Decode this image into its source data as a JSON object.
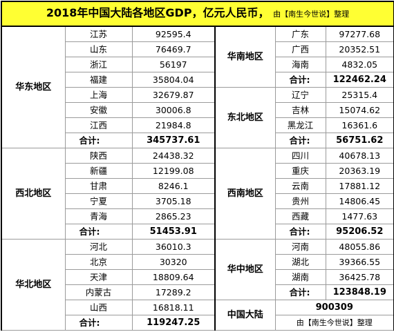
{
  "header": {
    "title": "2018年中国大陆各地区GDP，亿元人民币，",
    "credit": "由【南生今世说】整理"
  },
  "left_groups": [
    {
      "region": "华东地区",
      "rows": [
        [
          "江苏",
          92595.4
        ],
        [
          "山东",
          76469.7
        ],
        [
          "浙江",
          56197
        ],
        [
          "福建",
          35804.04
        ],
        [
          "上海",
          32679.87
        ],
        [
          "安徽",
          30006.8
        ],
        [
          "江西",
          21984.8
        ]
      ],
      "total_label": "合计:",
      "total": 345737.61
    },
    {
      "region": "西北地区",
      "rows": [
        [
          "陕西",
          24438.32
        ],
        [
          "新疆",
          12199.08
        ],
        [
          "甘肃",
          8246.1
        ],
        [
          "宁夏",
          3705.18
        ],
        [
          "青海",
          2865.23
        ]
      ],
      "total_label": "合计:",
      "total": 51453.91
    },
    {
      "region": "华北地区",
      "rows": [
        [
          "河北",
          36010.3
        ],
        [
          "北京",
          30320
        ],
        [
          "天津",
          18809.64
        ],
        [
          "内蒙古",
          17289.2
        ],
        [
          "山西",
          16818.11
        ]
      ],
      "total_label": "合计:",
      "total": 119247.25
    }
  ],
  "right_groups": [
    {
      "region": "华南地区",
      "rows": [
        [
          "广东",
          97277.68
        ],
        [
          "广西",
          20352.51
        ],
        [
          "海南",
          4832.05
        ]
      ],
      "total_label": "合计:",
      "total": 122462.24
    },
    {
      "region": "东北地区",
      "rows": [
        [
          "辽宁",
          25315.4
        ],
        [
          "吉林",
          15074.62
        ],
        [
          "黑龙江",
          16361.6
        ]
      ],
      "total_label": "合计:",
      "total": 56751.62
    },
    {
      "region": "西南地区",
      "rows": [
        [
          "四川",
          40678.13
        ],
        [
          "重庆",
          20363.19
        ],
        [
          "云南",
          17881.12
        ],
        [
          "贵州",
          14806.45
        ],
        [
          "西藏",
          1477.63
        ]
      ],
      "total_label": "合计:",
      "total": 95206.52
    },
    {
      "region": "华中地区",
      "rows": [
        [
          "河南",
          48055.86
        ],
        [
          "湖北",
          39366.55
        ],
        [
          "湖南",
          36425.78
        ]
      ],
      "total_label": "合计:",
      "total": 123848.19
    }
  ],
  "national": {
    "region": "中国大陆",
    "total": 900309,
    "note": "由【南生今世说】整理"
  }
}
